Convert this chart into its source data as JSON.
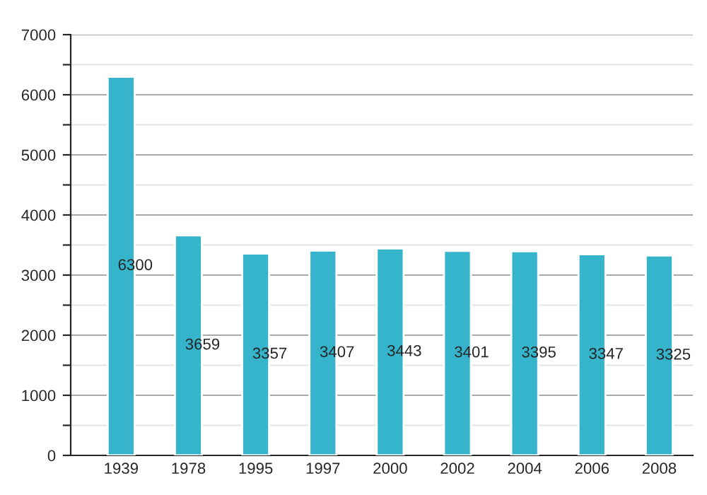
{
  "chart_data": {
    "type": "bar",
    "categories": [
      "1939",
      "1978",
      "1995",
      "1997",
      "2000",
      "2002",
      "2004",
      "2006",
      "2008"
    ],
    "values": [
      6300,
      3659,
      3357,
      3407,
      3443,
      3401,
      3395,
      3347,
      3325
    ],
    "color": "#36b4cc",
    "data_labels": true,
    "grid": "y",
    "ylim": [
      0,
      7000
    ],
    "yticks": [
      0,
      {
        "value": 500,
        "label": null
      },
      1000,
      {
        "value": 1500,
        "label": null
      },
      2000,
      {
        "value": 2500,
        "label": null
      },
      3000,
      {
        "value": 3500,
        "label": null
      },
      4000,
      {
        "value": 4500,
        "label": null
      },
      5000,
      {
        "value": 5500,
        "label": null
      },
      6000,
      {
        "value": 6500,
        "label": null
      },
      7000
    ]
  }
}
